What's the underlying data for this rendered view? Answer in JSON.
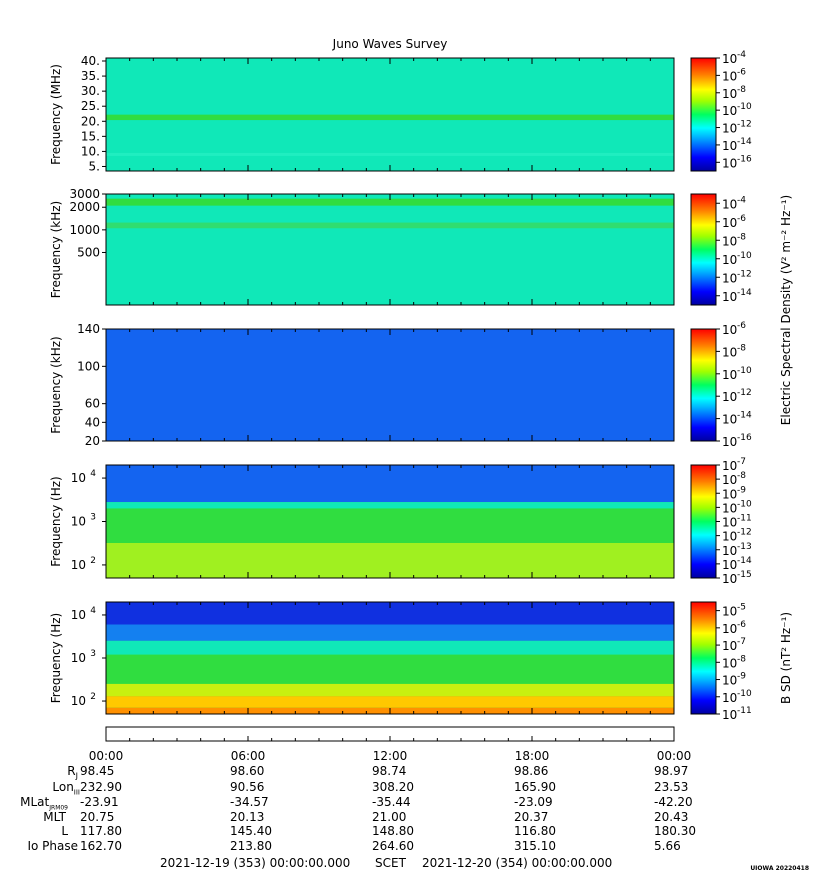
{
  "title": "Juno Waves Survey",
  "colors": {
    "bg": "#00ffff",
    "band": "#20e050"
  },
  "panels": [
    {
      "id": "p1",
      "ylabel": "Frequency (MHz)",
      "scale": "linear",
      "ylim": [
        3.5,
        41
      ],
      "ticks": [
        "40.",
        "35.",
        "30.",
        "25.",
        "20.",
        "15.",
        "10.",
        "5."
      ],
      "tickvals": [
        40,
        35,
        30,
        25,
        20,
        15,
        10,
        5
      ],
      "base_color": "#10e8b8",
      "bands": [
        [
          20.4,
          22.2,
          "#30dd40"
        ],
        [
          8.5,
          9.5,
          "#20eec0"
        ]
      ],
      "cbar": {
        "min": -17,
        "max": -4,
        "ticks": [
          "-4",
          "-6",
          "-8",
          "-10",
          "-12",
          "-14",
          "-16"
        ],
        "tickvals": [
          -4,
          -6,
          -8,
          -10,
          -12,
          -14,
          -16
        ]
      }
    },
    {
      "id": "p2",
      "ylabel": "Frequency (kHz)",
      "scale": "log",
      "ylim": [
        100,
        3000
      ],
      "ticks": [
        "3000",
        "2000",
        "1000",
        "500"
      ],
      "tickvals": [
        3000,
        2000,
        1000,
        500
      ],
      "base_color": "#10e8b8",
      "bands": [
        [
          2100,
          2600,
          "#30dd40"
        ],
        [
          1050,
          1250,
          "#30dd70"
        ]
      ],
      "cbar": {
        "min": -15,
        "max": -3,
        "ticks": [
          "-4",
          "-6",
          "-8",
          "-10",
          "-12",
          "-14"
        ],
        "tickvals": [
          -4,
          -6,
          -8,
          -10,
          -12,
          -14
        ]
      }
    },
    {
      "id": "p3",
      "ylabel": "Frequency (kHz)",
      "scale": "linear",
      "ylim": [
        20,
        140
      ],
      "ticks": [
        "140",
        "100",
        "60",
        "40",
        "20"
      ],
      "tickvals": [
        140,
        100,
        60,
        40,
        20
      ],
      "base_color": "#1464f0",
      "bands": [],
      "cbar": {
        "min": -16,
        "max": -6,
        "ticks": [
          "-6",
          "-8",
          "-10",
          "-12",
          "-14",
          "-16"
        ],
        "tickvals": [
          -6,
          -8,
          -10,
          -12,
          -14,
          -16
        ]
      }
    },
    {
      "id": "p4",
      "ylabel": "Frequency (Hz)",
      "scale": "log",
      "ylim": [
        50,
        20000
      ],
      "ticks": [
        "4",
        "3",
        "2"
      ],
      "tickvals": [
        10000,
        1000,
        100
      ],
      "base_color": "#30dd40",
      "bands": [
        [
          2800,
          20000,
          "#1464f0"
        ],
        [
          2000,
          2800,
          "#10e8b8"
        ],
        [
          50,
          320,
          "#a0f020"
        ]
      ],
      "cbar": {
        "min": -15,
        "max": -7,
        "ticks": [
          "-7",
          "-8",
          "-9",
          "-10",
          "-11",
          "-12",
          "-13",
          "-14",
          "-15"
        ],
        "tickvals": [
          -7,
          -8,
          -9,
          -10,
          -11,
          -12,
          -13,
          -14,
          -15
        ]
      }
    },
    {
      "id": "p5",
      "ylabel": "Frequency (Hz)",
      "scale": "log",
      "ylim": [
        50,
        20000
      ],
      "ticks": [
        "4",
        "3",
        "2"
      ],
      "tickvals": [
        10000,
        1000,
        100
      ],
      "base_color": "#30dd40",
      "bands": [
        [
          6000,
          20000,
          "#1030e0"
        ],
        [
          2500,
          6000,
          "#1480f0"
        ],
        [
          1200,
          2500,
          "#10e8b8"
        ],
        [
          130,
          250,
          "#c8f010"
        ],
        [
          70,
          130,
          "#ffc800"
        ],
        [
          50,
          70,
          "#ff9000"
        ]
      ],
      "cbar": {
        "min": -11,
        "max": -4.5,
        "ticks": [
          "-5",
          "-6",
          "-7",
          "-8",
          "-9",
          "-10",
          "-11"
        ],
        "tickvals": [
          -5,
          -6,
          -7,
          -8,
          -9,
          -10,
          -11
        ]
      }
    }
  ],
  "cbar_labels": {
    "electric": "Electric Spectral Density (V² m⁻² Hz⁻¹)",
    "magnetic": "B SD (nT² Hz⁻¹)"
  },
  "chart_data": {
    "type": "heatmap",
    "title": "Juno Waves Survey",
    "x": [
      "00:00",
      "06:00",
      "12:00",
      "18:00",
      "00:00"
    ],
    "xlim": [
      "2021-12-19 00:00:00.000",
      "2021-12-20 00:00:00.000"
    ]
  },
  "ephemeris": [
    {
      "label": "RJ",
      "values": [
        "98.45",
        "98.60",
        "98.74",
        "98.86",
        "98.97"
      ]
    },
    {
      "label": "LonIII",
      "values": [
        "232.90",
        "90.56",
        "308.20",
        "165.90",
        "23.53"
      ]
    },
    {
      "label": "MLatJRM09",
      "values": [
        "-23.91",
        "-34.57",
        "-35.44",
        "-23.09",
        "-42.20"
      ]
    },
    {
      "label": "MLT",
      "values": [
        "20.75",
        "20.13",
        "21.00",
        "20.37",
        "20.43"
      ]
    },
    {
      "label": "L",
      "values": [
        "117.80",
        "145.40",
        "148.80",
        "116.80",
        "180.30"
      ]
    },
    {
      "label": "Io Phase",
      "values": [
        "162.70",
        "213.80",
        "264.60",
        "315.10",
        "5.66"
      ]
    }
  ],
  "footer": {
    "start": "2021-12-19 (353) 00:00:00.000",
    "scet": "SCET",
    "end": "2021-12-20 (354) 00:00:00.000"
  },
  "stamp": "UIOWA 20220418"
}
